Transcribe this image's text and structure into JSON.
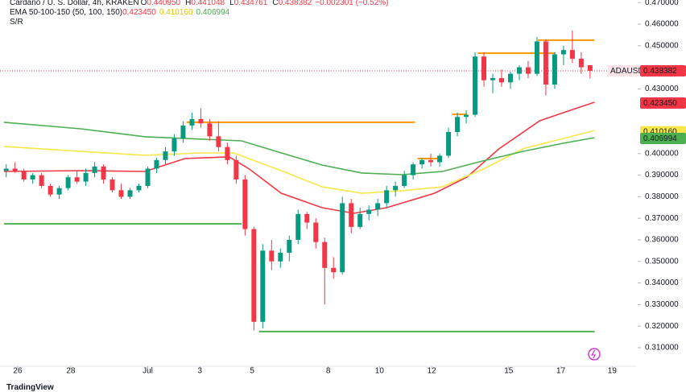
{
  "chart_data": {
    "type": "candlestick",
    "title": "Cardano / U. S. Dollar, 4h, KRAKEN",
    "ohlc": [
      {
        "label": "O",
        "value": "0.440950"
      },
      {
        "label": "H",
        "value": "0.441048"
      },
      {
        "label": "L",
        "value": "0.434761"
      },
      {
        "label": "C",
        "value": "0.438382"
      }
    ],
    "change": "−0.002301 (−0.52%)",
    "indicator": "EMA 50-100-150 (50, 100, 150)",
    "levels_label": "S/R",
    "source": "TradingView",
    "up_color": "#089981",
    "down_color": "#f23645",
    "xlim": [
      -0.7,
      71.2
    ],
    "ylim": [
      0.3014,
      0.4712
    ],
    "xticks": [
      {
        "value": 1.3,
        "label": "26"
      },
      {
        "value": 7.3,
        "label": "28"
      },
      {
        "value": 16.0,
        "label": "Jul"
      },
      {
        "value": 21.9,
        "label": "3"
      },
      {
        "value": 27.8,
        "label": "5"
      },
      {
        "value": 36.4,
        "label": "8"
      },
      {
        "value": 42.2,
        "label": "10"
      },
      {
        "value": 48.1,
        "label": "12"
      },
      {
        "value": 56.8,
        "label": "15"
      },
      {
        "value": 62.7,
        "label": "17"
      },
      {
        "value": 68.5,
        "label": "19"
      }
    ],
    "yticks": [
      {
        "value": 0.31,
        "label": "0.310000"
      },
      {
        "value": 0.32,
        "label": "0.320000"
      },
      {
        "value": 0.33,
        "label": "0.330000"
      },
      {
        "value": 0.34,
        "label": "0.340000"
      },
      {
        "value": 0.35,
        "label": "0.350000"
      },
      {
        "value": 0.36,
        "label": "0.360000"
      },
      {
        "value": 0.37,
        "label": "0.370000"
      },
      {
        "value": 0.38,
        "label": "0.380000"
      },
      {
        "value": 0.39,
        "label": "0.390000"
      },
      {
        "value": 0.4,
        "label": "0.400000"
      },
      {
        "value": 0.43,
        "label": "0.430000"
      },
      {
        "value": 0.45,
        "label": "0.450000"
      },
      {
        "value": 0.46,
        "label": "0.460000"
      },
      {
        "value": 0.47,
        "label": "0.470000"
      }
    ],
    "last_price": {
      "name": "ADAUSD",
      "value": 0.438382,
      "label": "0.438382",
      "color": "#f23645"
    },
    "candles": [
      [
        0.392,
        0.395,
        0.389,
        0.393
      ],
      [
        0.393,
        0.396,
        0.391,
        0.392
      ],
      [
        0.392,
        0.393,
        0.387,
        0.388
      ],
      [
        0.388,
        0.391,
        0.386,
        0.39
      ],
      [
        0.39,
        0.391,
        0.384,
        0.385
      ],
      [
        0.385,
        0.386,
        0.38,
        0.381
      ],
      [
        0.381,
        0.385,
        0.379,
        0.384
      ],
      [
        0.384,
        0.39,
        0.383,
        0.389
      ],
      [
        0.389,
        0.392,
        0.386,
        0.387
      ],
      [
        0.387,
        0.393,
        0.385,
        0.391
      ],
      [
        0.391,
        0.396,
        0.389,
        0.394
      ],
      [
        0.394,
        0.395,
        0.386,
        0.388
      ],
      [
        0.388,
        0.389,
        0.382,
        0.383
      ],
      [
        0.383,
        0.386,
        0.379,
        0.38
      ],
      [
        0.38,
        0.384,
        0.379,
        0.383
      ],
      [
        0.383,
        0.386,
        0.382,
        0.385
      ],
      [
        0.385,
        0.394,
        0.384,
        0.393
      ],
      [
        0.393,
        0.398,
        0.391,
        0.397
      ],
      [
        0.397,
        0.403,
        0.395,
        0.401
      ],
      [
        0.401,
        0.409,
        0.399,
        0.407
      ],
      [
        0.407,
        0.415,
        0.405,
        0.413
      ],
      [
        0.413,
        0.419,
        0.411,
        0.416
      ],
      [
        0.416,
        0.421,
        0.412,
        0.414
      ],
      [
        0.414,
        0.416,
        0.406,
        0.408
      ],
      [
        0.408,
        0.415,
        0.401,
        0.403
      ],
      [
        0.403,
        0.405,
        0.395,
        0.397
      ],
      [
        0.397,
        0.399,
        0.386,
        0.388
      ],
      [
        0.388,
        0.39,
        0.362,
        0.365
      ],
      [
        0.365,
        0.366,
        0.318,
        0.322
      ],
      [
        0.322,
        0.358,
        0.319,
        0.355
      ],
      [
        0.355,
        0.36,
        0.346,
        0.35
      ],
      [
        0.35,
        0.356,
        0.347,
        0.354
      ],
      [
        0.354,
        0.362,
        0.35,
        0.36
      ],
      [
        0.36,
        0.374,
        0.358,
        0.372
      ],
      [
        0.372,
        0.373,
        0.365,
        0.368
      ],
      [
        0.368,
        0.37,
        0.356,
        0.359
      ],
      [
        0.359,
        0.361,
        0.33,
        0.347
      ],
      [
        0.347,
        0.352,
        0.342,
        0.345
      ],
      [
        0.345,
        0.38,
        0.344,
        0.377
      ],
      [
        0.377,
        0.379,
        0.363,
        0.366
      ],
      [
        0.366,
        0.375,
        0.365,
        0.372
      ],
      [
        0.372,
        0.376,
        0.369,
        0.374
      ],
      [
        0.374,
        0.379,
        0.371,
        0.377
      ],
      [
        0.377,
        0.385,
        0.375,
        0.383
      ],
      [
        0.383,
        0.387,
        0.38,
        0.385
      ],
      [
        0.385,
        0.392,
        0.384,
        0.39
      ],
      [
        0.39,
        0.396,
        0.388,
        0.395
      ],
      [
        0.395,
        0.398,
        0.393,
        0.397
      ],
      [
        0.397,
        0.4,
        0.394,
        0.396
      ],
      [
        0.396,
        0.4,
        0.394,
        0.399
      ],
      [
        0.399,
        0.412,
        0.398,
        0.41
      ],
      [
        0.41,
        0.419,
        0.408,
        0.417
      ],
      [
        0.417,
        0.42,
        0.414,
        0.418
      ],
      [
        0.418,
        0.447,
        0.417,
        0.445
      ],
      [
        0.445,
        0.447,
        0.431,
        0.434
      ],
      [
        0.434,
        0.437,
        0.428,
        0.435
      ],
      [
        0.435,
        0.439,
        0.431,
        0.433
      ],
      [
        0.433,
        0.438,
        0.43,
        0.437
      ],
      [
        0.437,
        0.441,
        0.434,
        0.44
      ],
      [
        0.44,
        0.443,
        0.435,
        0.437
      ],
      [
        0.437,
        0.454,
        0.436,
        0.452
      ],
      [
        0.452,
        0.453,
        0.427,
        0.432
      ],
      [
        0.432,
        0.447,
        0.43,
        0.446
      ],
      [
        0.446,
        0.45,
        0.441,
        0.448
      ],
      [
        0.448,
        0.457,
        0.442,
        0.444
      ],
      [
        0.444,
        0.447,
        0.437,
        0.44
      ],
      [
        0.44095,
        0.441048,
        0.434761,
        0.438382
      ]
    ],
    "series": [
      {
        "color": "#f23645",
        "text_color": "#ffffff",
        "x": [
          -0.25,
          8.4,
          15.7,
          20.2,
          25.2,
          27.5,
          31.1,
          35.7,
          39.3,
          43.0,
          48.4,
          52.1,
          55.7,
          60.3,
          63.0,
          66.5
        ],
        "values": [
          0.3917,
          0.3921,
          0.3917,
          0.3977,
          0.3985,
          0.3928,
          0.3816,
          0.3749,
          0.3723,
          0.3749,
          0.3816,
          0.3891,
          0.4022,
          0.4152,
          0.419,
          0.4238
        ],
        "last": {
          "value": 0.42345,
          "label": "0.423450"
        }
      },
      {
        "color": "#f7e64a",
        "text_color": "#131722",
        "x": [
          -0.25,
          8.4,
          15.7,
          22.0,
          25.7,
          31.1,
          35.7,
          40.2,
          44.8,
          49.3,
          53.9,
          58.4,
          63.0,
          66.5
        ],
        "values": [
          0.4033,
          0.401,
          0.3992,
          0.4003,
          0.4003,
          0.3921,
          0.3846,
          0.3816,
          0.3828,
          0.3846,
          0.3928,
          0.4022,
          0.407,
          0.4107
        ],
        "last": {
          "value": 0.41016,
          "label": "0.410160"
        }
      },
      {
        "color": "#4caf50",
        "text_color": "#ffffff",
        "x": [
          -0.25,
          8.4,
          15.7,
          22.0,
          26.6,
          31.1,
          35.7,
          40.2,
          44.8,
          49.3,
          53.9,
          58.4,
          63.0,
          66.5
        ],
        "values": [
          0.4145,
          0.4115,
          0.4078,
          0.4067,
          0.4059,
          0.4003,
          0.3947,
          0.391,
          0.3902,
          0.3917,
          0.3966,
          0.401,
          0.4048,
          0.4074
        ],
        "last": {
          "value": 0.406994,
          "label": "0.406994"
        }
      }
    ],
    "levels": [
      {
        "value": 0.3674,
        "x": [
          -0.25,
          26.6
        ],
        "color": "#4caf50"
      },
      {
        "value": 0.4145,
        "x": [
          20.4,
          46.2
        ],
        "color": "#ff9800"
      },
      {
        "value": 0.3175,
        "x": [
          28.6,
          66.5
        ],
        "color": "#4caf50"
      },
      {
        "value": 0.3977,
        "x": [
          46.5,
          48.9
        ],
        "color": "#ff9800"
      },
      {
        "value": 0.4182,
        "x": [
          50.4,
          52.1
        ],
        "color": "#ff9800"
      },
      {
        "value": 0.4465,
        "x": [
          53.3,
          62.1
        ],
        "color": "#ff9800"
      },
      {
        "value": 0.4526,
        "x": [
          60.1,
          66.5
        ],
        "color": "#ff9800"
      }
    ]
  }
}
